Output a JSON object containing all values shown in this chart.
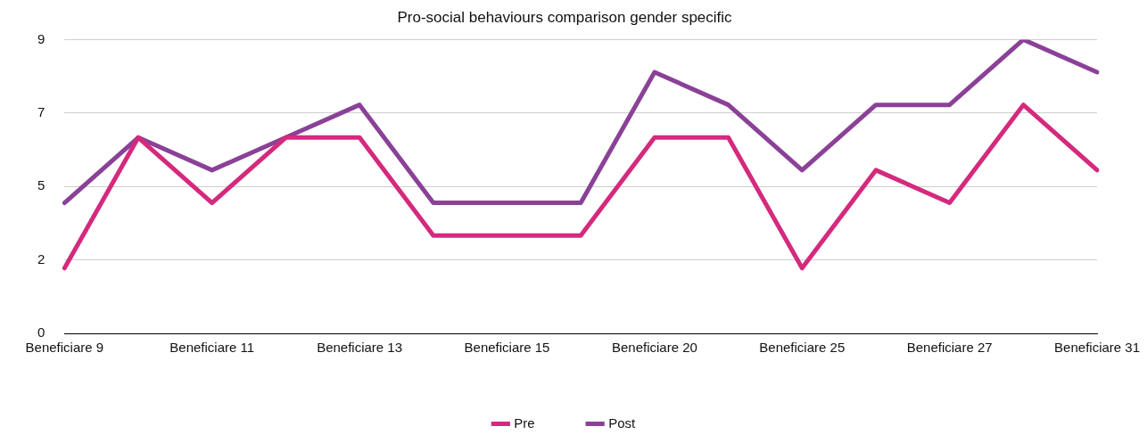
{
  "chart_data": {
    "type": "line",
    "title": "Pro-social behaviours comparison gender specific",
    "categories": [
      "Beneficiare 9",
      null,
      "Beneficiare 11",
      null,
      "Beneficiare 13",
      null,
      "Beneficiare 15",
      null,
      "Beneficiare 20",
      null,
      "Beneficiare 25",
      null,
      "Beneficiare 27",
      null,
      "Beneficiare 31"
    ],
    "series": [
      {
        "name": "Pre",
        "color": "#d42a7e",
        "values": [
          2,
          6,
          4,
          6,
          6,
          3,
          3,
          3,
          6,
          6,
          2,
          5,
          4,
          7,
          5
        ]
      },
      {
        "name": "Post",
        "color": "#8a4197",
        "values": [
          4,
          6,
          5,
          6,
          7,
          4,
          4,
          4,
          8,
          7,
          5,
          7,
          7,
          9,
          8
        ]
      }
    ],
    "ylim": [
      0,
      9
    ],
    "yticks": [
      0,
      {
        "value": 2.25,
        "label": "2"
      },
      {
        "value": 4.5,
        "label": "5"
      },
      {
        "value": 6.75,
        "label": "7"
      },
      9
    ],
    "grid": "y",
    "legend": "bottom",
    "marker": "none",
    "line_style": "solid"
  }
}
